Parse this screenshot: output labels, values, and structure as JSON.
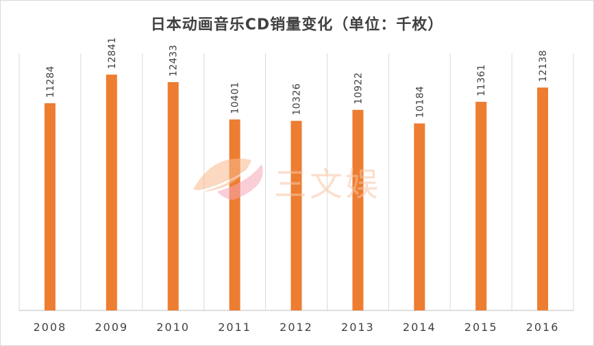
{
  "chart_data": {
    "type": "bar",
    "title": "日本动画音乐CD销量变化（单位：千枚）",
    "categories": [
      "2008",
      "2009",
      "2010",
      "2011",
      "2012",
      "2013",
      "2014",
      "2015",
      "2016"
    ],
    "values": [
      11284,
      12841,
      12433,
      10401,
      10326,
      10922,
      10184,
      11361,
      12138
    ],
    "ylim": [
      0,
      14000
    ],
    "bar_color": "#ed7d31",
    "grid": "vertical separators",
    "legend": "none"
  },
  "watermark": {
    "text": "三文娱",
    "color": "#f9c5a6"
  }
}
